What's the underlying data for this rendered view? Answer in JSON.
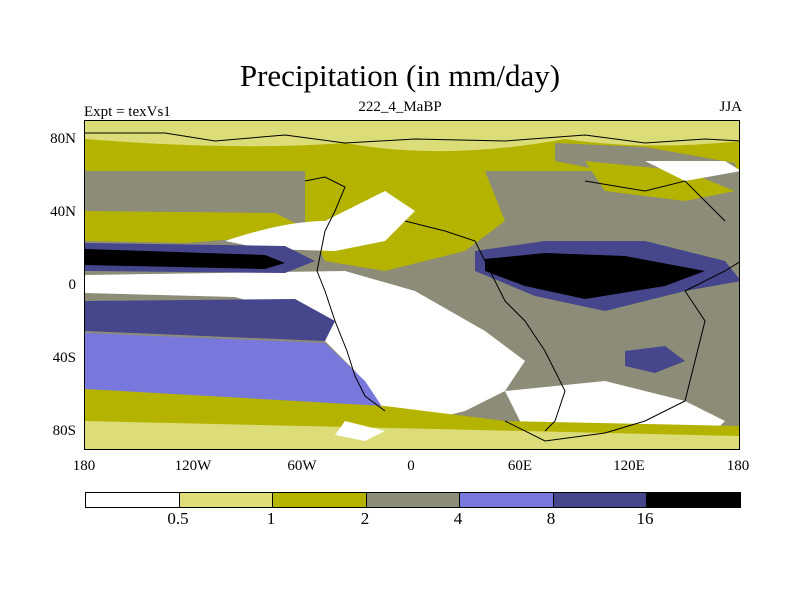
{
  "title": "Precipitation (in mm/day)",
  "subtitle_left": "Expt = texVs1",
  "subtitle_center": "222_4_MaBP",
  "subtitle_right": "JJA",
  "y_ticks": [
    "80N",
    "40N",
    "0",
    "40S",
    "80S"
  ],
  "x_ticks": [
    "180",
    "120W",
    "60W",
    "0",
    "60E",
    "120E",
    "180"
  ],
  "colorbar": {
    "levels": [
      "0.5",
      "1",
      "2",
      "4",
      "8",
      "16"
    ],
    "colors": [
      "#ffffff",
      "#dcdc78",
      "#b4b400",
      "#8c8c78",
      "#7878dc",
      "#46468c",
      "#000000"
    ]
  },
  "colors": {
    "ocean_background": "#8c8c78",
    "coastline": "#000000"
  }
}
